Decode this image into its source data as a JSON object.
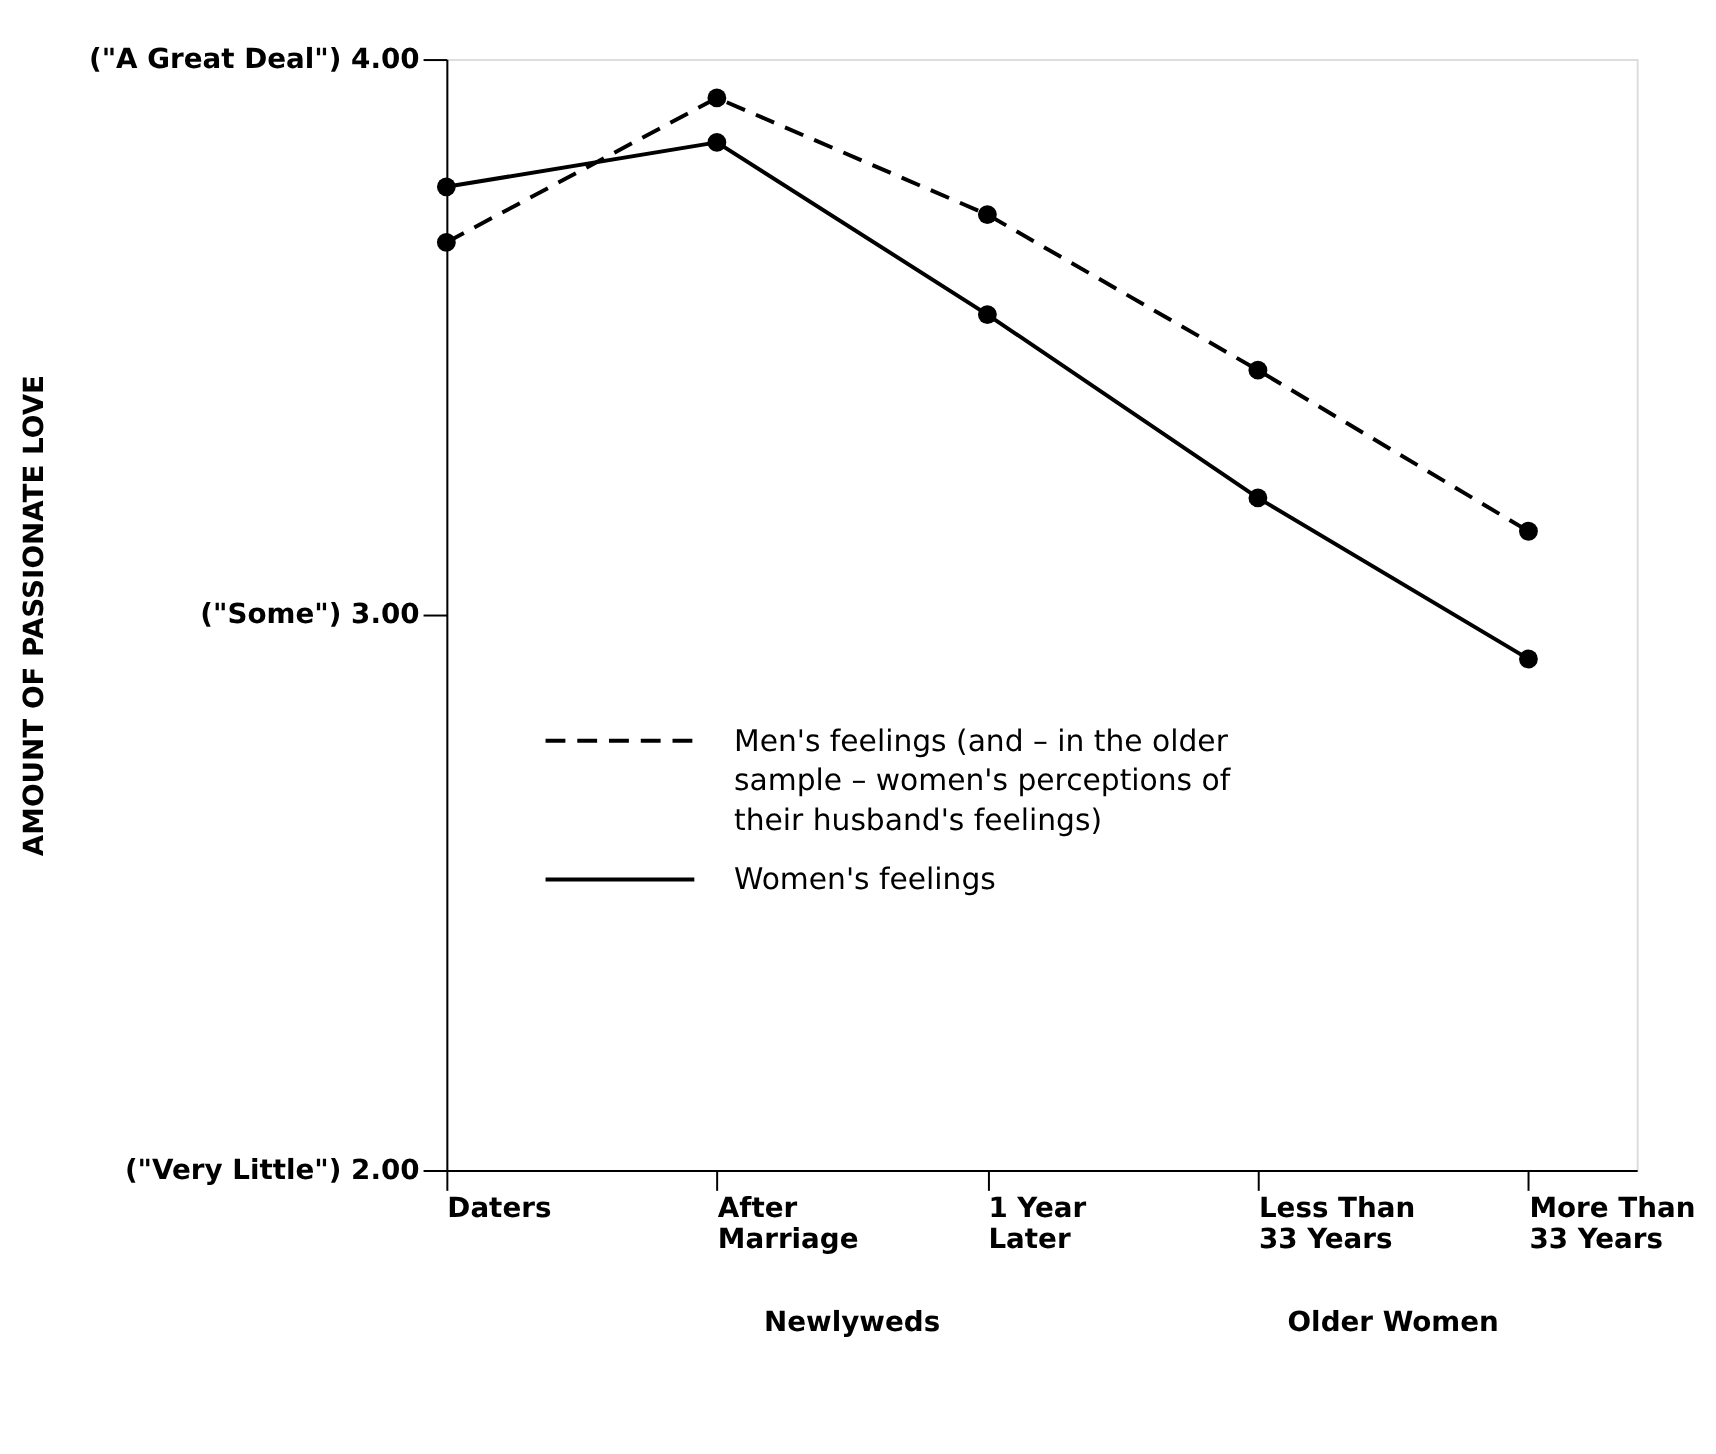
{
  "chart_data": {
    "type": "line",
    "ylabel": "AMOUNT OF PASSIONATE LOVE",
    "categories": [
      "Daters",
      "After Marriage",
      "1 Year Later",
      "Less Than 33 Years",
      "More Than 33 Years"
    ],
    "series": [
      {
        "name": "Men's feelings (and – in the older sample – women's perceptions of their husband's feelings)",
        "color": "#000000",
        "line_style": "dashed",
        "values": [
          3.67,
          3.93,
          3.72,
          3.44,
          3.15
        ]
      },
      {
        "name": "Women's feelings",
        "color": "#000000",
        "line_style": "solid",
        "values": [
          3.77,
          3.85,
          3.54,
          3.21,
          2.92
        ]
      }
    ],
    "ylim": [
      2.0,
      4.0
    ],
    "yticks": [
      {
        "value": 2.0,
        "label": "(\"Very Little\") 2.00"
      },
      {
        "value": 3.0,
        "label": "(\"Some\") 3.00"
      },
      {
        "value": 4.0,
        "label": "(\"A Great Deal\") 4.00"
      }
    ],
    "annotations": [
      "Newlyweds",
      "Older Women"
    ],
    "marker": "circle",
    "grid": false,
    "legend": "center"
  }
}
